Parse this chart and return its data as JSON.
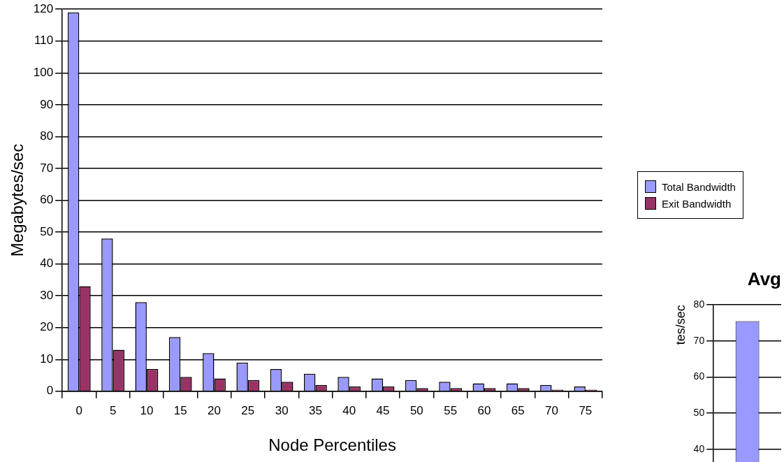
{
  "chart_data": [
    {
      "type": "bar",
      "xlabel": "Node Percentiles",
      "ylabel": "Megabytes/sec",
      "categories": [
        "0",
        "5",
        "10",
        "15",
        "20",
        "25",
        "30",
        "35",
        "40",
        "45",
        "50",
        "55",
        "60",
        "65",
        "70",
        "75"
      ],
      "series": [
        {
          "name": "Total Bandwidth",
          "color": "#9999ff",
          "values": [
            119,
            48,
            28,
            17,
            12,
            9,
            7,
            5.5,
            4.5,
            4,
            3.5,
            3,
            2.5,
            2.5,
            2,
            1.5
          ]
        },
        {
          "name": "Exit Bandwidth",
          "color": "#993366",
          "values": [
            33,
            13,
            7,
            4.5,
            4,
            3.5,
            3,
            2,
            1.5,
            1.5,
            1,
            1,
            1,
            1,
            0.5,
            0.5
          ]
        }
      ],
      "ylim": [
        0,
        120
      ],
      "yticks": [
        0,
        10,
        20,
        30,
        40,
        50,
        60,
        70,
        80,
        90,
        100,
        110,
        120
      ],
      "grid": "y",
      "legend": "right"
    },
    {
      "type": "bar",
      "title": "Avg",
      "ylabel": "tes/sec",
      "categories": [
        null
      ],
      "series": [
        {
          "color": "#9999ff",
          "values": [
            75.5
          ]
        }
      ],
      "ylim": [
        0,
        80
      ],
      "yticks": [
        40,
        50,
        60,
        70,
        80
      ],
      "grid": "y",
      "tick_labels": "y"
    }
  ]
}
